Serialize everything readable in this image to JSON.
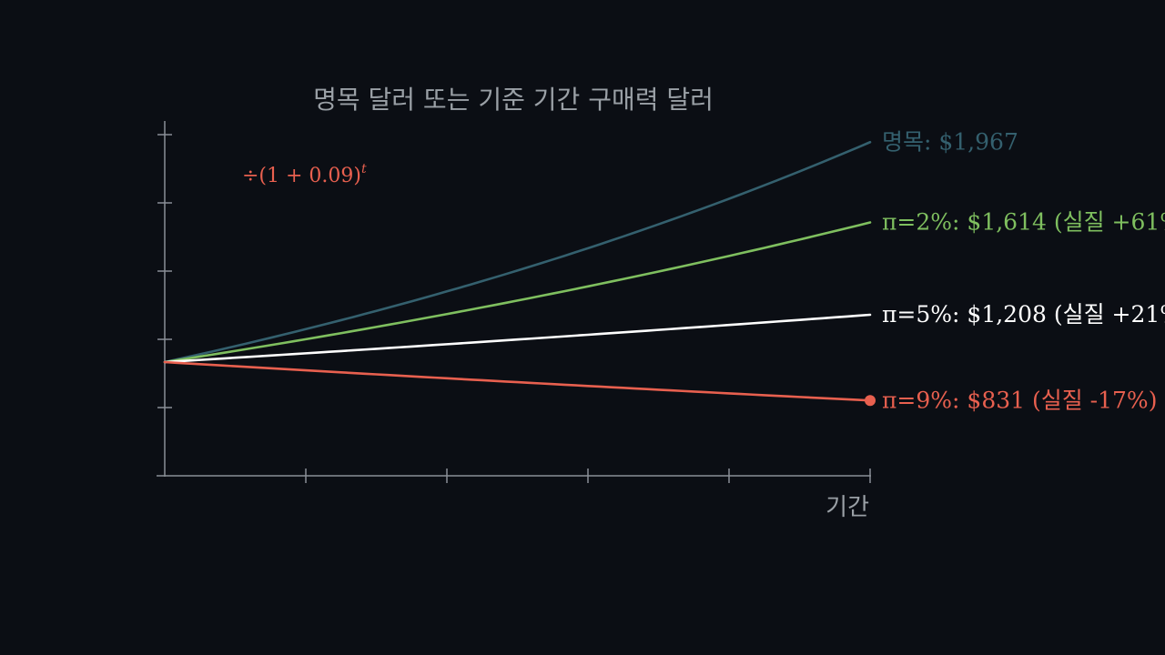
{
  "chart_data": {
    "type": "line",
    "title": "명목 달러 또는 기준 기간 구매력 달러",
    "xlabel": "기간",
    "ylabel": "",
    "annotation": "÷(1 + 0.09)",
    "annotation_sup": "t",
    "principal": 1000,
    "periods": 5,
    "x": [
      0,
      1,
      2,
      3,
      4,
      5
    ],
    "ylim": [
      500,
      2000
    ],
    "series": [
      {
        "name": "명목",
        "color": "#34606e",
        "label": "명목: $1,967",
        "values": [
          1000,
          1145,
          1311,
          1501,
          1718,
          1967
        ]
      },
      {
        "name": "π=2%",
        "color": "#7fbf5f",
        "label": "π=2%: $1,614 (실질 +61%",
        "values": [
          1000,
          1100,
          1212,
          1335,
          1470,
          1614
        ]
      },
      {
        "name": "π=5%",
        "color": "#ffffff",
        "label": "π=5%: $1,208 (실질 +21%",
        "values": [
          1000,
          1040,
          1081,
          1124,
          1166,
          1208
        ]
      },
      {
        "name": "π=9%",
        "color": "#e8604f",
        "label": "π=9%: $831 (실질 -17%)",
        "values": [
          1000,
          966,
          932,
          898,
          865,
          831
        ]
      }
    ]
  }
}
